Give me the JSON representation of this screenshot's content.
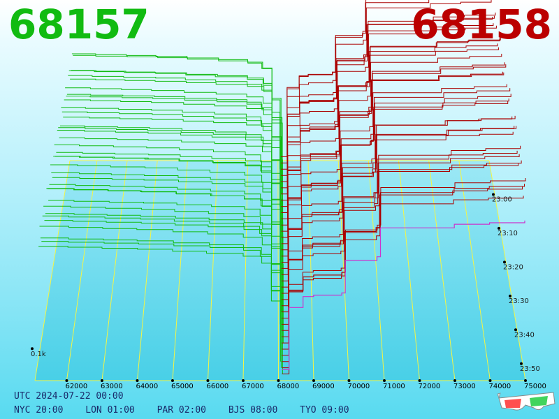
{
  "header": {
    "bid": "68157",
    "ask": "68158",
    "bid_color": "#11bb11",
    "ask_color": "#bb0000"
  },
  "footer": {
    "utc": "UTC 2024-07-22 00:00",
    "nyc": "NYC 20:00",
    "lon": "LON 01:00",
    "par": "PAR 02:00",
    "bjs": "BJS 08:00",
    "tyo": "TYO 09:00"
  },
  "chart_data": {
    "type": "3d-depth",
    "x_ticks": [
      "62000",
      "63000",
      "64000",
      "65000",
      "66000",
      "67000",
      "68000",
      "69000",
      "70000",
      "71000",
      "72000",
      "73000",
      "74000",
      "75000"
    ],
    "time_ticks": [
      "23:00",
      "23:10",
      "23:20",
      "23:30",
      "23:40",
      "23:50"
    ],
    "volume_label": "0.1k",
    "x_range": [
      61100,
      75000
    ],
    "bid_color": "#11bb11",
    "ask_color": "#aa0000",
    "grid_color": "#f5f544",
    "current_ask_color": "#cc33cc",
    "series": [
      {
        "name": "bids",
        "x": [
          61200,
          62000,
          63000,
          64000,
          65000,
          66000,
          67000,
          67500,
          67800,
          68100
        ],
        "y": [
          1.35,
          1.34,
          1.33,
          1.32,
          1.3,
          1.28,
          1.25,
          1.18,
          0.8,
          0.05
        ]
      },
      {
        "name": "asks",
        "x": [
          68100,
          68300,
          68700,
          69000,
          69800,
          69900,
          70800,
          70900,
          72000,
          73000,
          74000,
          75000
        ],
        "y": [
          0.05,
          0.95,
          1.1,
          1.12,
          1.15,
          1.6,
          1.65,
          2.05,
          2.05,
          2.1,
          2.12,
          2.15
        ]
      }
    ]
  }
}
